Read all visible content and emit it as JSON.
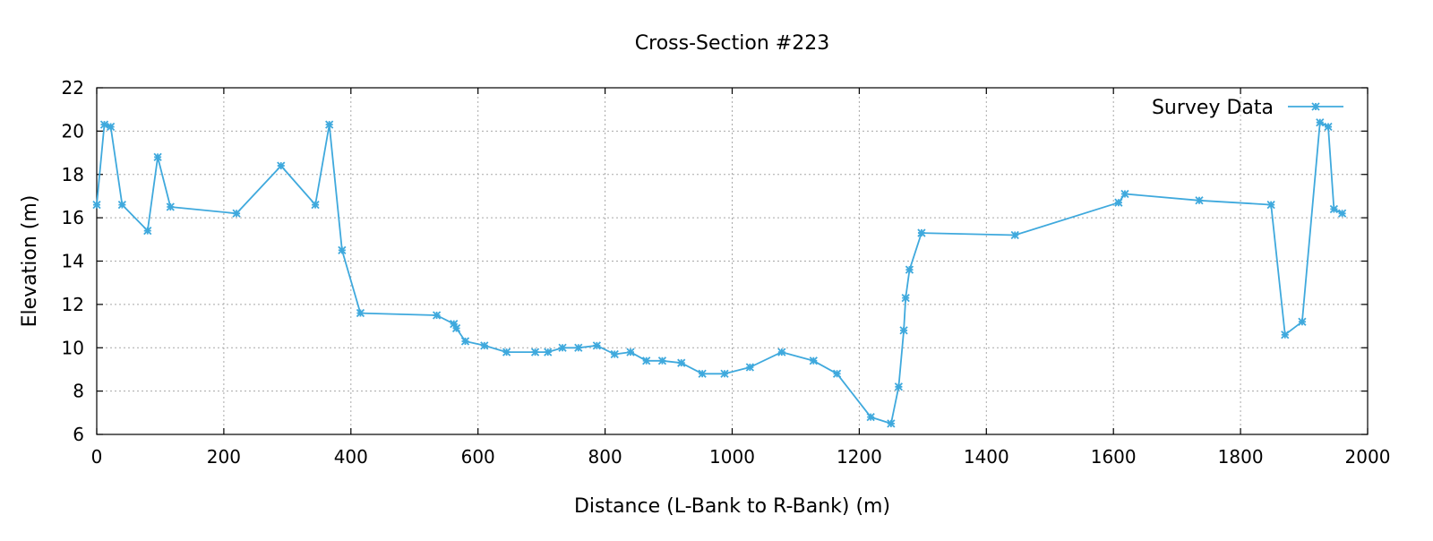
{
  "chart_data": {
    "type": "line",
    "title": "Cross-Section #223",
    "xlabel": "Distance (L-Bank to R-Bank) (m)",
    "ylabel": "Elevation (m)",
    "xlim": [
      0,
      2000
    ],
    "ylim": [
      6,
      22
    ],
    "xticks": [
      0,
      200,
      400,
      600,
      800,
      1000,
      1200,
      1400,
      1600,
      1800,
      2000
    ],
    "yticks": [
      6,
      8,
      10,
      12,
      14,
      16,
      18,
      20,
      22
    ],
    "grid": true,
    "legend_position": "top-right",
    "marker": "asterisk",
    "series": [
      {
        "name": "Survey Data",
        "color": "#3fa9dd",
        "x": [
          0,
          12,
          22,
          40,
          80,
          96,
          116,
          220,
          290,
          344,
          366,
          386,
          415,
          535,
          562,
          566,
          580,
          610,
          645,
          690,
          710,
          733,
          758,
          787,
          815,
          840,
          865,
          890,
          920,
          953,
          988,
          1028,
          1078,
          1128,
          1165,
          1218,
          1250,
          1262,
          1270,
          1273,
          1279,
          1298,
          1445,
          1608,
          1618,
          1735,
          1848,
          1870,
          1897,
          1925,
          1938,
          1947,
          1960
        ],
        "y": [
          16.6,
          20.3,
          20.2,
          16.6,
          15.4,
          18.8,
          16.5,
          16.2,
          18.4,
          16.6,
          20.3,
          14.5,
          11.6,
          11.5,
          11.1,
          10.9,
          10.3,
          10.1,
          9.8,
          9.8,
          9.8,
          10.0,
          10.0,
          10.1,
          9.7,
          9.8,
          9.4,
          9.4,
          9.3,
          8.8,
          8.8,
          9.1,
          9.8,
          9.4,
          8.8,
          6.8,
          6.5,
          8.2,
          10.8,
          12.3,
          13.6,
          15.3,
          15.2,
          16.7,
          17.1,
          16.8,
          16.6,
          10.6,
          11.2,
          20.4,
          20.2,
          16.4,
          16.2
        ]
      }
    ]
  }
}
